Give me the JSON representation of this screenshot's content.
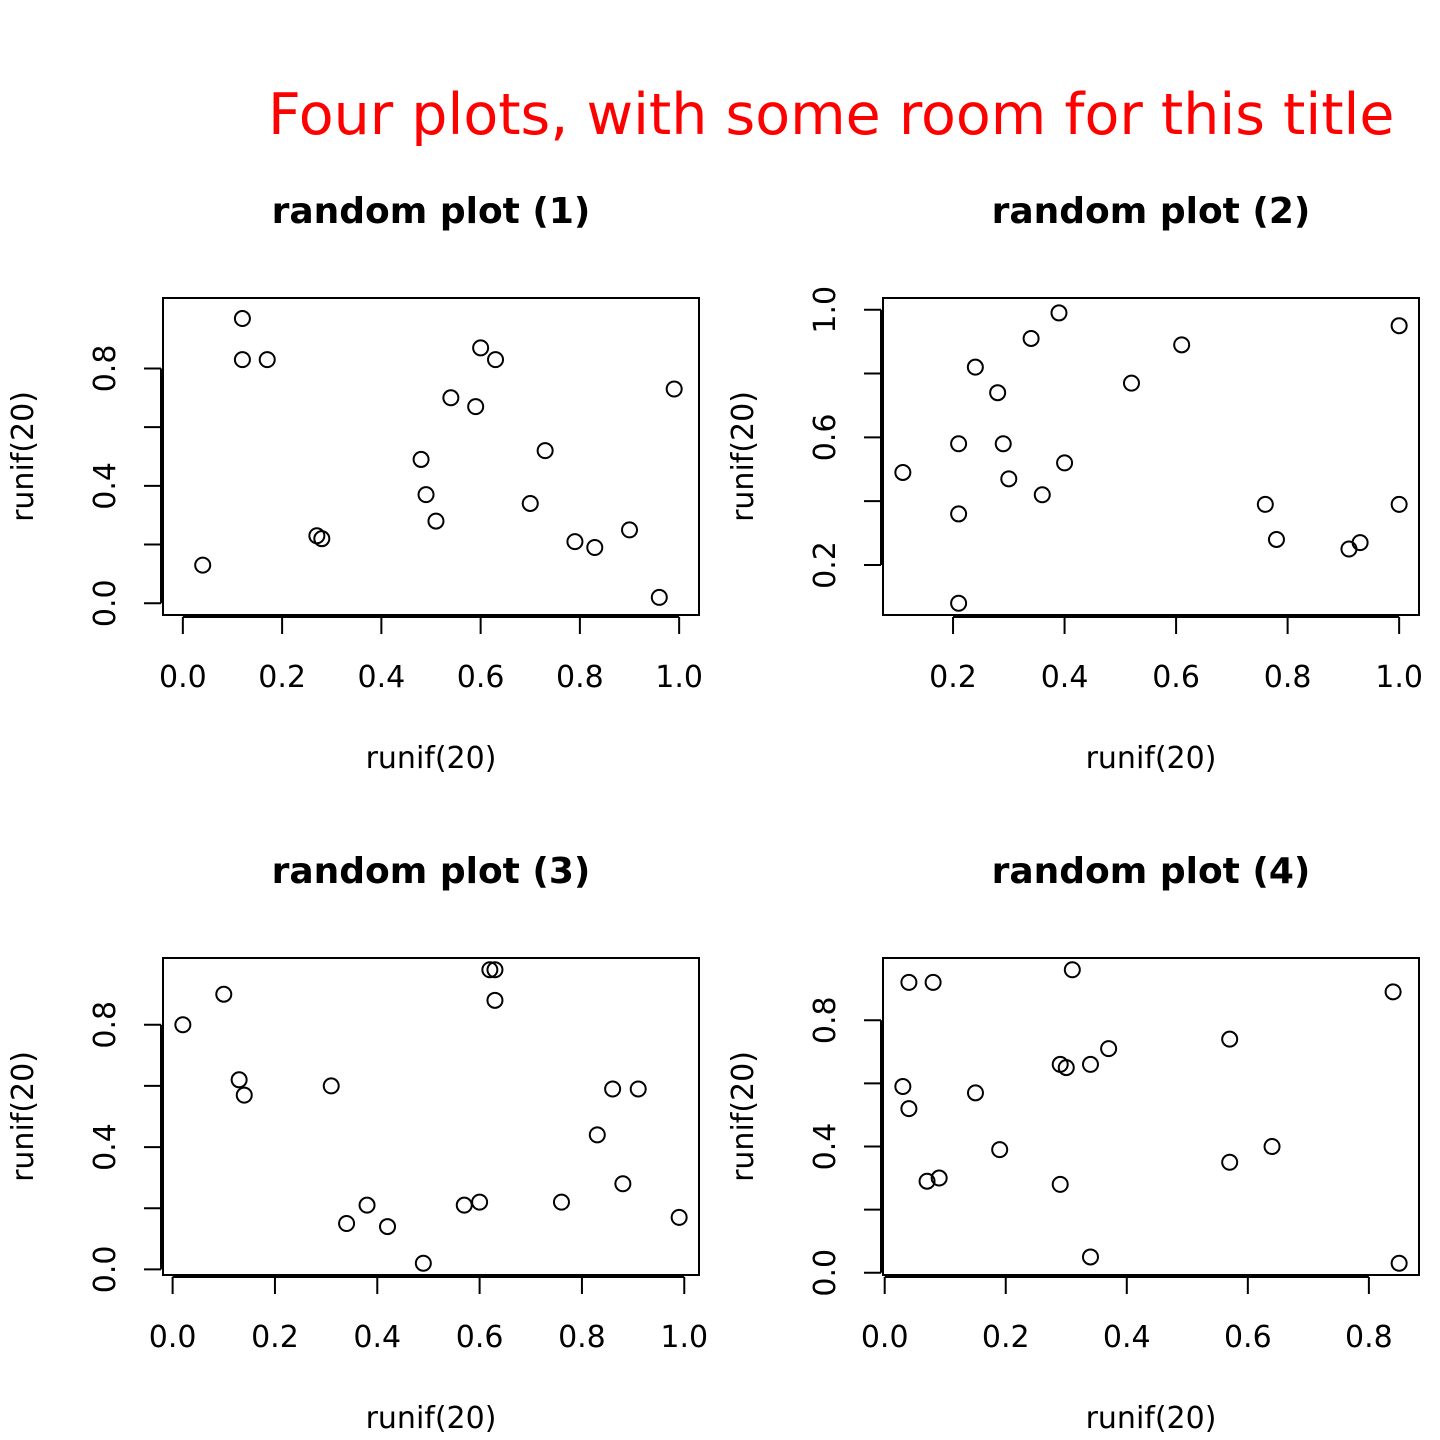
{
  "figure": {
    "title": "Four plots, with some room for this title",
    "title_color": "#ff0000"
  },
  "chart_data": [
    {
      "type": "scatter",
      "title": "random plot (1)",
      "xlabel": "runif(20)",
      "ylabel": "runif(20)",
      "xlim": [
        0.0,
        1.0
      ],
      "ylim": [
        0.0,
        1.0
      ],
      "x_ticks": [
        "0.0",
        "0.2",
        "0.4",
        "0.6",
        "0.8",
        "1.0"
      ],
      "y_ticks": [
        "0.0",
        "0.4",
        "0.8"
      ],
      "points": [
        {
          "x": 0.04,
          "y": 0.13
        },
        {
          "x": 0.12,
          "y": 0.97
        },
        {
          "x": 0.12,
          "y": 0.83
        },
        {
          "x": 0.17,
          "y": 0.83
        },
        {
          "x": 0.27,
          "y": 0.23
        },
        {
          "x": 0.28,
          "y": 0.22
        },
        {
          "x": 0.48,
          "y": 0.49
        },
        {
          "x": 0.49,
          "y": 0.37
        },
        {
          "x": 0.51,
          "y": 0.28
        },
        {
          "x": 0.54,
          "y": 0.7
        },
        {
          "x": 0.59,
          "y": 0.67
        },
        {
          "x": 0.6,
          "y": 0.87
        },
        {
          "x": 0.63,
          "y": 0.83
        },
        {
          "x": 0.7,
          "y": 0.34
        },
        {
          "x": 0.73,
          "y": 0.52
        },
        {
          "x": 0.79,
          "y": 0.21
        },
        {
          "x": 0.83,
          "y": 0.19
        },
        {
          "x": 0.9,
          "y": 0.25
        },
        {
          "x": 0.96,
          "y": 0.02
        },
        {
          "x": 0.99,
          "y": 0.73
        }
      ]
    },
    {
      "type": "scatter",
      "title": "random plot (2)",
      "xlabel": "runif(20)",
      "ylabel": "runif(20)",
      "xlim": [
        0.11,
        1.0
      ],
      "ylim": [
        0.08,
        1.0
      ],
      "x_ticks": [
        "0.2",
        "0.4",
        "0.6",
        "0.8",
        "1.0"
      ],
      "y_ticks": [
        "0.2",
        "0.6",
        "1.0"
      ],
      "points": [
        {
          "x": 0.11,
          "y": 0.49
        },
        {
          "x": 0.21,
          "y": 0.58
        },
        {
          "x": 0.21,
          "y": 0.36
        },
        {
          "x": 0.21,
          "y": 0.08
        },
        {
          "x": 0.24,
          "y": 0.82
        },
        {
          "x": 0.28,
          "y": 0.74
        },
        {
          "x": 0.29,
          "y": 0.58
        },
        {
          "x": 0.3,
          "y": 0.47
        },
        {
          "x": 0.34,
          "y": 0.91
        },
        {
          "x": 0.36,
          "y": 0.42
        },
        {
          "x": 0.39,
          "y": 0.99
        },
        {
          "x": 0.4,
          "y": 0.52
        },
        {
          "x": 0.52,
          "y": 0.77
        },
        {
          "x": 0.61,
          "y": 0.89
        },
        {
          "x": 0.76,
          "y": 0.39
        },
        {
          "x": 0.78,
          "y": 0.28
        },
        {
          "x": 0.91,
          "y": 0.25
        },
        {
          "x": 0.93,
          "y": 0.27
        },
        {
          "x": 1.0,
          "y": 0.95
        },
        {
          "x": 1.0,
          "y": 0.39
        }
      ]
    },
    {
      "type": "scatter",
      "title": "random plot (3)",
      "xlabel": "runif(20)",
      "ylabel": "runif(20)",
      "xlim": [
        0.02,
        0.99
      ],
      "ylim": [
        0.02,
        0.98
      ],
      "x_ticks": [
        "0.0",
        "0.2",
        "0.4",
        "0.6",
        "0.8",
        "1.0"
      ],
      "y_ticks": [
        "0.0",
        "0.4",
        "0.8"
      ],
      "points": [
        {
          "x": 0.02,
          "y": 0.8
        },
        {
          "x": 0.1,
          "y": 0.9
        },
        {
          "x": 0.13,
          "y": 0.62
        },
        {
          "x": 0.14,
          "y": 0.57
        },
        {
          "x": 0.31,
          "y": 0.6
        },
        {
          "x": 0.34,
          "y": 0.15
        },
        {
          "x": 0.38,
          "y": 0.21
        },
        {
          "x": 0.42,
          "y": 0.14
        },
        {
          "x": 0.49,
          "y": 0.02
        },
        {
          "x": 0.57,
          "y": 0.21
        },
        {
          "x": 0.6,
          "y": 0.22
        },
        {
          "x": 0.62,
          "y": 0.98
        },
        {
          "x": 0.63,
          "y": 0.98
        },
        {
          "x": 0.63,
          "y": 0.88
        },
        {
          "x": 0.76,
          "y": 0.22
        },
        {
          "x": 0.83,
          "y": 0.44
        },
        {
          "x": 0.86,
          "y": 0.59
        },
        {
          "x": 0.88,
          "y": 0.28
        },
        {
          "x": 0.91,
          "y": 0.59
        },
        {
          "x": 0.99,
          "y": 0.17
        }
      ]
    },
    {
      "type": "scatter",
      "title": "random plot (4)",
      "xlabel": "runif(20)",
      "ylabel": "runif(20)",
      "xlim": [
        0.03,
        0.85
      ],
      "ylim": [
        0.03,
        0.96
      ],
      "x_ticks": [
        "0.0",
        "0.2",
        "0.4",
        "0.6",
        "0.8"
      ],
      "y_ticks": [
        "0.0",
        "0.4",
        "0.8"
      ],
      "points": [
        {
          "x": 0.03,
          "y": 0.59
        },
        {
          "x": 0.04,
          "y": 0.92
        },
        {
          "x": 0.04,
          "y": 0.52
        },
        {
          "x": 0.07,
          "y": 0.29
        },
        {
          "x": 0.08,
          "y": 0.92
        },
        {
          "x": 0.09,
          "y": 0.3
        },
        {
          "x": 0.15,
          "y": 0.57
        },
        {
          "x": 0.19,
          "y": 0.39
        },
        {
          "x": 0.29,
          "y": 0.66
        },
        {
          "x": 0.29,
          "y": 0.28
        },
        {
          "x": 0.3,
          "y": 0.65
        },
        {
          "x": 0.31,
          "y": 0.96
        },
        {
          "x": 0.34,
          "y": 0.66
        },
        {
          "x": 0.34,
          "y": 0.05
        },
        {
          "x": 0.37,
          "y": 0.71
        },
        {
          "x": 0.57,
          "y": 0.74
        },
        {
          "x": 0.57,
          "y": 0.35
        },
        {
          "x": 0.64,
          "y": 0.4
        },
        {
          "x": 0.84,
          "y": 0.89
        },
        {
          "x": 0.85,
          "y": 0.03
        }
      ]
    }
  ]
}
